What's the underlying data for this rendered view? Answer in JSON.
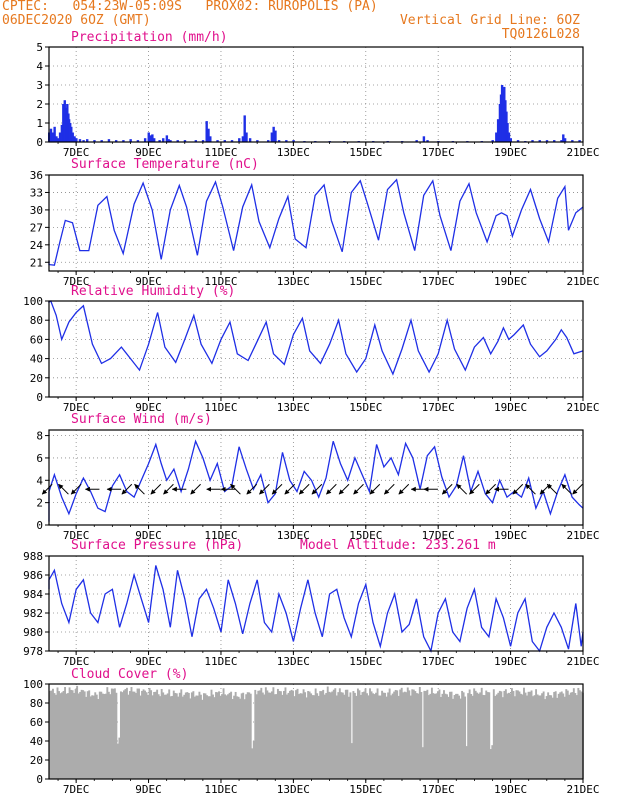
{
  "header": {
    "line1": "CPTEC:   054:23W-05:09S   PROX02: RUROPOLIS (PA)",
    "line2_left": "06DEC2020 6OZ (GMT)",
    "line2_right": "Vertical Grid Line: 6OZ",
    "line3_right": "TQ0126L028"
  },
  "colors": {
    "header": "#e6781e",
    "title": "#e0108c",
    "series": "#1f2fe6",
    "cloud": "#acacac",
    "wind_arrow": "#000000"
  },
  "x_axis": {
    "ticks": [
      "7DEC",
      "9DEC",
      "11DEC",
      "13DEC",
      "15DEC",
      "17DEC",
      "19DEC",
      "21DEC"
    ],
    "start": "06DEC2020 06Z",
    "end": "21DEC2020 00Z"
  },
  "chart_data": [
    {
      "type": "bar",
      "title": "Precipitation (mm/h)",
      "ylim": [
        0,
        5
      ],
      "yticks": [
        0,
        1,
        2,
        3,
        4,
        5
      ],
      "days": [
        6.0,
        6.2,
        6.25,
        6.3,
        6.33,
        6.36,
        6.4,
        6.45,
        6.5,
        6.55,
        6.6,
        6.64,
        6.68,
        6.72,
        6.75,
        6.78,
        6.8,
        6.83,
        6.86,
        6.9,
        6.95,
        7.0,
        7.1,
        7.2,
        7.3,
        7.5,
        7.7,
        7.9,
        8.1,
        8.3,
        8.5,
        8.7,
        8.9,
        9.0,
        9.05,
        9.1,
        9.15,
        9.3,
        9.4,
        9.5,
        9.55,
        9.6,
        9.8,
        10.0,
        10.3,
        10.5,
        10.6,
        10.65,
        10.7,
        10.9,
        11.1,
        11.3,
        11.5,
        11.6,
        11.65,
        11.7,
        11.8,
        12.0,
        12.3,
        12.4,
        12.45,
        12.5,
        12.6,
        12.8,
        13.0,
        13.3,
        13.6,
        14.0,
        14.4,
        14.8,
        15.2,
        15.6,
        16.0,
        16.4,
        16.6,
        16.7,
        17.0,
        17.4,
        17.8,
        18.2,
        18.5,
        18.6,
        18.65,
        18.7,
        18.73,
        18.76,
        18.79,
        18.82,
        18.85,
        18.88,
        18.91,
        18.95,
        19.0,
        19.2,
        19.4,
        19.6,
        19.8,
        20.0,
        20.2,
        20.4,
        20.45,
        20.5,
        20.7,
        20.9
      ],
      "values": [
        0.6,
        0.3,
        0.5,
        0.7,
        0.4,
        0.5,
        0.8,
        0.3,
        0.2,
        0.5,
        0.9,
        2.0,
        2.2,
        1.8,
        2.0,
        1.5,
        1.2,
        1.0,
        0.8,
        0.5,
        0.3,
        0.2,
        0.15,
        0.1,
        0.15,
        0.1,
        0.1,
        0.15,
        0.1,
        0.1,
        0.15,
        0.1,
        0.2,
        0.5,
        0.35,
        0.4,
        0.2,
        0.1,
        0.2,
        0.35,
        0.15,
        0.1,
        0.1,
        0.1,
        0.1,
        0.1,
        1.1,
        0.7,
        0.3,
        0.1,
        0.1,
        0.1,
        0.2,
        0.3,
        1.4,
        0.5,
        0.2,
        0.1,
        0.1,
        0.5,
        0.8,
        0.6,
        0.1,
        0.1,
        0.1,
        0.05,
        0.05,
        0.05,
        0.05,
        0.05,
        0.05,
        0.05,
        0.05,
        0.1,
        0.3,
        0.1,
        0.05,
        0.05,
        0.05,
        0.05,
        0.1,
        0.5,
        1.2,
        2.0,
        2.5,
        3.0,
        2.7,
        2.9,
        2.2,
        1.6,
        1.0,
        0.5,
        0.2,
        0.1,
        0.05,
        0.1,
        0.1,
        0.1,
        0.1,
        0.1,
        0.4,
        0.2,
        0.1,
        0.1
      ]
    },
    {
      "type": "line",
      "title": "Surface Temperature (nC)",
      "ylim": [
        19.5,
        36
      ],
      "yticks": [
        21,
        24,
        27,
        30,
        33,
        36
      ],
      "days": [
        6.0,
        6.2,
        6.4,
        6.55,
        6.7,
        6.9,
        7.1,
        7.35,
        7.6,
        7.85,
        8.05,
        8.3,
        8.6,
        8.85,
        9.1,
        9.35,
        9.6,
        9.85,
        10.05,
        10.35,
        10.6,
        10.85,
        11.05,
        11.35,
        11.6,
        11.85,
        12.05,
        12.35,
        12.6,
        12.85,
        13.05,
        13.35,
        13.6,
        13.85,
        14.05,
        14.35,
        14.6,
        14.85,
        15.05,
        15.35,
        15.6,
        15.85,
        16.05,
        16.35,
        16.6,
        16.85,
        17.05,
        17.35,
        17.6,
        17.85,
        18.05,
        18.35,
        18.6,
        18.75,
        18.9,
        19.05,
        19.3,
        19.55,
        19.8,
        20.05,
        20.3,
        20.5,
        20.6,
        20.8,
        21.0
      ],
      "values": [
        21.2,
        20.6,
        20.5,
        24.5,
        28.2,
        27.8,
        23.0,
        23.0,
        30.8,
        32.3,
        26.5,
        22.5,
        31.0,
        34.6,
        30.0,
        21.5,
        30.0,
        34.2,
        30.5,
        22.2,
        31.5,
        34.8,
        30.5,
        23.0,
        30.5,
        34.3,
        28.0,
        23.5,
        28.5,
        32.3,
        25.0,
        23.5,
        32.5,
        34.3,
        28.2,
        22.8,
        33.0,
        35.0,
        31.0,
        24.8,
        33.5,
        35.2,
        29.5,
        23.0,
        32.5,
        35.0,
        29.0,
        23.0,
        31.5,
        34.5,
        29.5,
        24.5,
        29.0,
        29.5,
        29.0,
        25.5,
        30.0,
        33.5,
        28.5,
        24.5,
        32.0,
        34.0,
        26.5,
        29.5,
        30.5
      ]
    },
    {
      "type": "line",
      "title": "Relative Humidity (%)",
      "ylim": [
        0,
        100
      ],
      "yticks": [
        0,
        20,
        40,
        60,
        80,
        100
      ],
      "days": [
        6.0,
        6.15,
        6.3,
        6.45,
        6.6,
        6.8,
        7.0,
        7.2,
        7.45,
        7.7,
        7.95,
        8.25,
        8.5,
        8.75,
        9.0,
        9.25,
        9.45,
        9.75,
        10.0,
        10.25,
        10.45,
        10.75,
        11.0,
        11.25,
        11.45,
        11.75,
        12.0,
        12.25,
        12.45,
        12.75,
        13.0,
        13.25,
        13.45,
        13.75,
        14.0,
        14.25,
        14.45,
        14.75,
        15.0,
        15.25,
        15.45,
        15.75,
        16.0,
        16.25,
        16.45,
        16.75,
        17.0,
        17.25,
        17.45,
        17.75,
        18.0,
        18.25,
        18.45,
        18.65,
        18.8,
        18.95,
        19.1,
        19.35,
        19.55,
        19.8,
        20.0,
        20.25,
        20.4,
        20.55,
        20.75,
        21.0
      ],
      "values": [
        100,
        99,
        100,
        85,
        60,
        78,
        88,
        95,
        55,
        35,
        40,
        52,
        40,
        28,
        55,
        88,
        52,
        36,
        60,
        85,
        55,
        35,
        60,
        78,
        45,
        38,
        58,
        78,
        45,
        34,
        65,
        82,
        48,
        35,
        55,
        80,
        45,
        26,
        40,
        75,
        48,
        24,
        50,
        80,
        48,
        26,
        45,
        80,
        50,
        28,
        52,
        62,
        45,
        58,
        72,
        60,
        65,
        75,
        55,
        42,
        48,
        60,
        70,
        62,
        45,
        48
      ]
    },
    {
      "type": "line",
      "title": "Surface Wind (m/s)",
      "ylim": [
        0,
        8.5
      ],
      "yticks": [
        0,
        2,
        4,
        6,
        8
      ],
      "days": [
        6.0,
        6.2,
        6.4,
        6.6,
        6.8,
        7.0,
        7.2,
        7.4,
        7.6,
        7.8,
        8.0,
        8.2,
        8.4,
        8.6,
        8.8,
        9.0,
        9.2,
        9.35,
        9.5,
        9.7,
        9.9,
        10.1,
        10.3,
        10.5,
        10.7,
        10.9,
        11.1,
        11.3,
        11.5,
        11.7,
        11.9,
        12.1,
        12.3,
        12.5,
        12.7,
        12.9,
        13.1,
        13.3,
        13.5,
        13.7,
        13.9,
        14.1,
        14.3,
        14.5,
        14.7,
        14.9,
        15.1,
        15.3,
        15.5,
        15.7,
        15.9,
        16.1,
        16.3,
        16.5,
        16.7,
        16.9,
        17.1,
        17.3,
        17.5,
        17.7,
        17.9,
        18.1,
        18.3,
        18.5,
        18.7,
        18.9,
        19.1,
        19.3,
        19.5,
        19.7,
        19.9,
        20.1,
        20.3,
        20.5,
        20.7,
        20.9,
        21.0
      ],
      "values": [
        0.3,
        3.0,
        4.5,
        2.5,
        1.0,
        2.8,
        4.2,
        3.0,
        1.5,
        1.2,
        3.5,
        4.5,
        3.0,
        2.5,
        4.0,
        5.5,
        7.2,
        5.5,
        4.0,
        5.0,
        3.0,
        5.0,
        7.5,
        6.0,
        4.0,
        5.5,
        3.0,
        3.5,
        7.0,
        5.0,
        3.2,
        4.5,
        2.0,
        2.8,
        6.5,
        4.0,
        3.0,
        4.8,
        4.0,
        2.5,
        4.2,
        7.5,
        5.5,
        4.0,
        6.0,
        4.5,
        3.0,
        7.2,
        5.2,
        6.0,
        4.5,
        7.3,
        6.0,
        3.2,
        6.2,
        7.0,
        4.3,
        2.5,
        3.5,
        6.2,
        3.0,
        4.8,
        2.8,
        2.0,
        4.0,
        2.5,
        3.0,
        2.5,
        4.2,
        1.5,
        3.0,
        1.0,
        3.0,
        4.5,
        2.5,
        1.8,
        1.5
      ],
      "arrows": [
        {
          "day": 6.2,
          "u": -1,
          "v": -1
        },
        {
          "day": 6.65,
          "u": -1,
          "v": 1
        },
        {
          "day": 7.0,
          "u": -1,
          "v": -1
        },
        {
          "day": 7.45,
          "u": -1,
          "v": 0
        },
        {
          "day": 8.05,
          "u": -1,
          "v": 0
        },
        {
          "day": 8.4,
          "u": -1,
          "v": -1
        },
        {
          "day": 8.75,
          "u": -1,
          "v": 1
        },
        {
          "day": 9.2,
          "u": -1,
          "v": -1
        },
        {
          "day": 9.55,
          "u": -1,
          "v": -1
        },
        {
          "day": 9.85,
          "u": -1,
          "v": 0
        },
        {
          "day": 10.3,
          "u": -1,
          "v": -1
        },
        {
          "day": 10.8,
          "u": -1,
          "v": 0
        },
        {
          "day": 11.2,
          "u": -1,
          "v": 0
        },
        {
          "day": 11.4,
          "u": -1,
          "v": 1
        },
        {
          "day": 11.85,
          "u": -1,
          "v": -1
        },
        {
          "day": 12.2,
          "u": -1,
          "v": -1
        },
        {
          "day": 12.55,
          "u": -1,
          "v": -1
        },
        {
          "day": 12.9,
          "u": -1,
          "v": -1
        },
        {
          "day": 13.3,
          "u": -1,
          "v": -1
        },
        {
          "day": 13.65,
          "u": -1,
          "v": -1
        },
        {
          "day": 14.05,
          "u": -1,
          "v": -1
        },
        {
          "day": 14.4,
          "u": -1,
          "v": -1
        },
        {
          "day": 14.8,
          "u": -1,
          "v": -1
        },
        {
          "day": 15.25,
          "u": -1,
          "v": -1
        },
        {
          "day": 15.65,
          "u": -1,
          "v": -1
        },
        {
          "day": 16.05,
          "u": -1,
          "v": -1
        },
        {
          "day": 16.45,
          "u": -1,
          "v": 0
        },
        {
          "day": 16.8,
          "u": -1,
          "v": 0
        },
        {
          "day": 17.25,
          "u": -1,
          "v": -1
        },
        {
          "day": 17.65,
          "u": -1,
          "v": 1
        },
        {
          "day": 18.0,
          "u": -1,
          "v": -1
        },
        {
          "day": 18.45,
          "u": -1,
          "v": -1
        },
        {
          "day": 18.75,
          "u": -1,
          "v": 0
        },
        {
          "day": 19.2,
          "u": -1,
          "v": -1
        },
        {
          "day": 19.55,
          "u": -1,
          "v": 1
        },
        {
          "day": 19.95,
          "u": -1,
          "v": -1
        },
        {
          "day": 20.15,
          "u": -1,
          "v": 1
        },
        {
          "day": 20.55,
          "u": -1,
          "v": 1
        },
        {
          "day": 20.85,
          "u": -1,
          "v": -1
        }
      ]
    },
    {
      "type": "line",
      "title": "Surface Pressure (hPa)",
      "annotation": "Model Altitude: 233.261 m",
      "ylim": [
        978,
        988
      ],
      "yticks": [
        978,
        980,
        982,
        984,
        986,
        988
      ],
      "days": [
        6.0,
        6.2,
        6.4,
        6.6,
        6.8,
        7.0,
        7.2,
        7.4,
        7.6,
        7.8,
        8.0,
        8.2,
        8.4,
        8.6,
        8.8,
        9.0,
        9.2,
        9.4,
        9.6,
        9.8,
        10.0,
        10.2,
        10.4,
        10.6,
        10.8,
        11.0,
        11.2,
        11.4,
        11.6,
        11.8,
        12.0,
        12.2,
        12.4,
        12.6,
        12.8,
        13.0,
        13.2,
        13.4,
        13.6,
        13.8,
        14.0,
        14.2,
        14.4,
        14.6,
        14.8,
        15.0,
        15.2,
        15.4,
        15.6,
        15.8,
        16.0,
        16.2,
        16.4,
        16.6,
        16.8,
        17.0,
        17.2,
        17.4,
        17.6,
        17.8,
        18.0,
        18.2,
        18.4,
        18.6,
        18.8,
        19.0,
        19.2,
        19.4,
        19.6,
        19.8,
        20.0,
        20.2,
        20.4,
        20.6,
        20.8,
        20.95,
        21.0
      ],
      "values": [
        984.5,
        985.5,
        986.5,
        983.0,
        981.0,
        984.5,
        985.5,
        982.0,
        981.0,
        984.0,
        984.5,
        980.5,
        983.0,
        986.0,
        983.5,
        981.0,
        987.0,
        984.5,
        980.5,
        986.5,
        983.5,
        979.5,
        983.5,
        984.5,
        982.5,
        980.0,
        985.5,
        983.0,
        979.8,
        983.0,
        985.5,
        981.0,
        980.0,
        984.0,
        982.0,
        979.0,
        982.5,
        985.5,
        982.0,
        979.5,
        984.0,
        984.5,
        981.5,
        979.5,
        983.0,
        985.0,
        981.0,
        978.5,
        982.0,
        984.0,
        980.0,
        980.8,
        983.5,
        979.5,
        978.0,
        982.0,
        983.5,
        980.0,
        979.0,
        982.5,
        984.5,
        980.5,
        979.5,
        983.5,
        981.5,
        978.5,
        982.0,
        983.5,
        979.0,
        978.0,
        980.5,
        982.0,
        980.5,
        978.2,
        983.0,
        978.5,
        980.0
      ]
    },
    {
      "type": "bar",
      "title": "Cloud Cover (%)",
      "ylim": [
        0,
        100
      ],
      "yticks": [
        0,
        20,
        40,
        60,
        80,
        100
      ],
      "days": [
        6.0,
        6.5,
        7.0,
        7.5,
        8.0,
        8.5,
        9.0,
        9.5,
        10.0,
        10.5,
        11.0,
        11.5,
        12.0,
        12.5,
        13.0,
        13.5,
        14.0,
        14.5,
        15.0,
        15.5,
        16.0,
        16.5,
        17.0,
        17.5,
        18.0,
        18.5,
        19.0,
        19.5,
        20.0,
        20.5,
        21.0
      ],
      "values": [
        93,
        92,
        94,
        88,
        94,
        93,
        92,
        90,
        90,
        88,
        91,
        87,
        93,
        92,
        92,
        90,
        93,
        91,
        92,
        90,
        93,
        92,
        91,
        88,
        92,
        90,
        92,
        91,
        88,
        91,
        93
      ]
    }
  ]
}
